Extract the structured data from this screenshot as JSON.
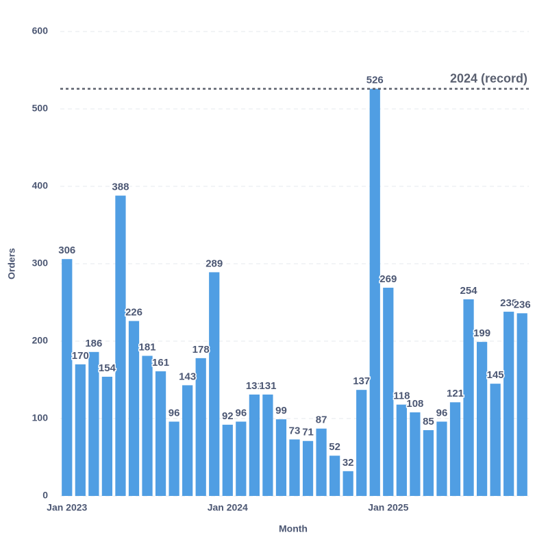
{
  "chart_data": {
    "type": "bar",
    "x_label": "Month",
    "y_label": "Orders",
    "categories": [
      "Jan 2023",
      null,
      null,
      null,
      null,
      null,
      null,
      null,
      null,
      null,
      null,
      null,
      "Jan 2024",
      null,
      null,
      null,
      null,
      null,
      null,
      null,
      null,
      null,
      null,
      null,
      "Jan 2025",
      null,
      null,
      null,
      null,
      null,
      null,
      null,
      null,
      null,
      null
    ],
    "values": [
      306,
      170,
      186,
      154,
      388,
      226,
      181,
      161,
      96,
      143,
      178,
      289,
      92,
      96,
      131,
      131,
      99,
      73,
      71,
      87,
      52,
      32,
      137,
      526,
      269,
      118,
      108,
      85,
      96,
      121,
      254,
      199,
      145,
      238,
      236
    ],
    "color": "#509ee3",
    "ylim": [
      0,
      600
    ],
    "yticks": [
      0,
      100,
      200,
      300,
      400,
      500,
      600
    ],
    "grid": true,
    "annotations": [
      {
        "y": 526,
        "label": "2024 (record)"
      }
    ]
  }
}
